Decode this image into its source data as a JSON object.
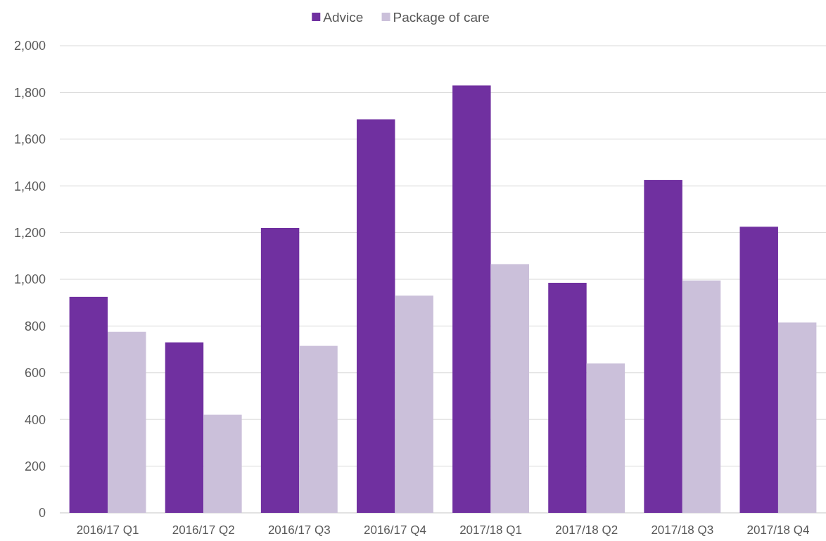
{
  "chart_data": {
    "type": "bar",
    "categories": [
      "2016/17 Q1",
      "2016/17 Q2",
      "2016/17 Q3",
      "2016/17 Q4",
      "2017/18 Q1",
      "2017/18 Q2",
      "2017/18 Q3",
      "2017/18 Q4"
    ],
    "series": [
      {
        "name": "Advice",
        "color": "#7030a0",
        "values": [
          925,
          730,
          1220,
          1685,
          1830,
          985,
          1425,
          1225
        ]
      },
      {
        "name": "Package of care",
        "color": "#cbc0da",
        "values": [
          775,
          420,
          715,
          930,
          1065,
          640,
          995,
          815
        ]
      }
    ],
    "ylim": [
      0,
      2000
    ],
    "yticks": [
      {
        "value": 0,
        "label": "0"
      },
      {
        "value": 200,
        "label": "200"
      },
      {
        "value": 400,
        "label": "400"
      },
      {
        "value": 600,
        "label": "600"
      },
      {
        "value": 800,
        "label": "800"
      },
      {
        "value": 1000,
        "label": "1,000"
      },
      {
        "value": 1200,
        "label": "1,200"
      },
      {
        "value": 1400,
        "label": "1,400"
      },
      {
        "value": 1600,
        "label": "1,600"
      },
      {
        "value": 1800,
        "label": "1,800"
      },
      {
        "value": 2000,
        "label": "2,000"
      }
    ],
    "grid": "y",
    "legend": "top"
  }
}
